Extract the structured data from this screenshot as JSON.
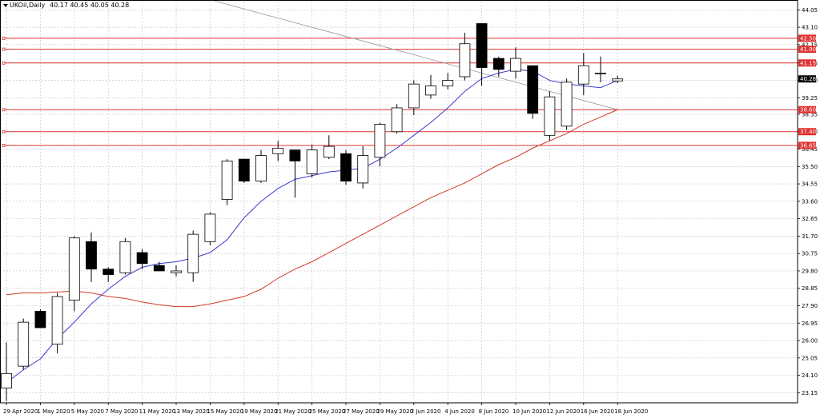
{
  "header": {
    "symbol_label": "UKOil,Daily",
    "ohlc_label": "40.17 40.45 40.05 40.28"
  },
  "price_label": "40.28",
  "colors": {
    "background": "#ffffff",
    "grid": "#c0c0c0",
    "candle_outline": "#000000",
    "bull_fill": "#ffffff",
    "bear_fill": "#000000",
    "ma_fast": "#3a3ad0",
    "ma_slow": "#d03a2a",
    "level_line": "#e03030",
    "trend_line": "#a0a0a0",
    "price_tag": "#000000"
  },
  "chart_data": {
    "type": "candlestick",
    "title": "UKOil,Daily",
    "ylim": [
      22.6,
      44.5
    ],
    "y_ticks": [
      "44.05",
      "43.10",
      "42.15",
      "41.15",
      "40.20",
      "39.25",
      "38.35",
      "37.40",
      "36.45",
      "35.50",
      "34.55",
      "33.60",
      "32.65",
      "31.70",
      "30.75",
      "29.80",
      "28.85",
      "27.90",
      "26.95",
      "26.00",
      "25.05",
      "24.10",
      "23.15"
    ],
    "x_tick_labels": [
      {
        "index": 0,
        "label": "29 Apr 2020"
      },
      {
        "index": 2,
        "label": "1 May 2020"
      },
      {
        "index": 4,
        "label": "5 May 2020"
      },
      {
        "index": 6,
        "label": "7 May 2020"
      },
      {
        "index": 8,
        "label": "11 May 2020"
      },
      {
        "index": 10,
        "label": "13 May 2020"
      },
      {
        "index": 12,
        "label": "15 May 2020"
      },
      {
        "index": 14,
        "label": "19 May 2020"
      },
      {
        "index": 16,
        "label": "21 May 2020"
      },
      {
        "index": 18,
        "label": "25 May 2020"
      },
      {
        "index": 20,
        "label": "27 May 2020"
      },
      {
        "index": 22,
        "label": "29 May 2020"
      },
      {
        "index": 24,
        "label": "2 Jun 2020"
      },
      {
        "index": 26,
        "label": "4 Jun 2020"
      },
      {
        "index": 28,
        "label": "8 Jun 2020"
      },
      {
        "index": 30,
        "label": "10 Jun 2020"
      },
      {
        "index": 32,
        "label": "12 Jun 2020"
      },
      {
        "index": 34,
        "label": "16 Jun 2020"
      },
      {
        "index": 36,
        "label": "18 Jun 2020"
      }
    ],
    "candles": [
      {
        "o": 23.4,
        "h": 25.9,
        "l": 22.7,
        "c": 24.2
      },
      {
        "o": 24.6,
        "h": 27.2,
        "l": 24.4,
        "c": 27.0
      },
      {
        "o": 27.6,
        "h": 27.7,
        "l": 26.7,
        "c": 26.7
      },
      {
        "o": 25.8,
        "h": 28.6,
        "l": 25.3,
        "c": 28.4
      },
      {
        "o": 28.2,
        "h": 31.7,
        "l": 27.6,
        "c": 31.6
      },
      {
        "o": 31.4,
        "h": 31.9,
        "l": 29.2,
        "c": 29.9
      },
      {
        "o": 29.9,
        "h": 30.0,
        "l": 29.2,
        "c": 29.6
      },
      {
        "o": 29.7,
        "h": 31.6,
        "l": 29.6,
        "c": 31.4
      },
      {
        "o": 30.8,
        "h": 31.0,
        "l": 29.9,
        "c": 30.2
      },
      {
        "o": 30.1,
        "h": 30.3,
        "l": 29.8,
        "c": 29.8
      },
      {
        "o": 29.7,
        "h": 30.1,
        "l": 29.5,
        "c": 29.8
      },
      {
        "o": 29.7,
        "h": 32.0,
        "l": 29.2,
        "c": 31.8
      },
      {
        "o": 31.4,
        "h": 33.0,
        "l": 31.2,
        "c": 32.9
      },
      {
        "o": 33.7,
        "h": 35.9,
        "l": 33.4,
        "c": 35.8
      },
      {
        "o": 35.9,
        "h": 35.9,
        "l": 34.6,
        "c": 34.7
      },
      {
        "o": 34.7,
        "h": 36.4,
        "l": 34.6,
        "c": 36.1
      },
      {
        "o": 36.2,
        "h": 36.9,
        "l": 35.8,
        "c": 36.5
      },
      {
        "o": 36.4,
        "h": 36.4,
        "l": 33.8,
        "c": 35.8
      },
      {
        "o": 35.1,
        "h": 36.7,
        "l": 34.9,
        "c": 36.4
      },
      {
        "o": 36.0,
        "h": 37.2,
        "l": 35.9,
        "c": 36.6
      },
      {
        "o": 36.2,
        "h": 36.4,
        "l": 34.5,
        "c": 34.7
      },
      {
        "o": 34.6,
        "h": 36.6,
        "l": 34.3,
        "c": 36.1
      },
      {
        "o": 36.0,
        "h": 37.9,
        "l": 35.5,
        "c": 37.8
      },
      {
        "o": 37.4,
        "h": 38.9,
        "l": 37.3,
        "c": 38.7
      },
      {
        "o": 38.7,
        "h": 40.2,
        "l": 38.3,
        "c": 40.0
      },
      {
        "o": 39.4,
        "h": 40.5,
        "l": 39.2,
        "c": 39.9
      },
      {
        "o": 39.9,
        "h": 40.6,
        "l": 39.7,
        "c": 40.2
      },
      {
        "o": 40.4,
        "h": 42.8,
        "l": 40.2,
        "c": 42.2
      },
      {
        "o": 43.3,
        "h": 43.3,
        "l": 39.9,
        "c": 40.9
      },
      {
        "o": 41.4,
        "h": 41.5,
        "l": 40.4,
        "c": 40.8
      },
      {
        "o": 40.7,
        "h": 42.0,
        "l": 40.3,
        "c": 41.4
      },
      {
        "o": 41.0,
        "h": 41.0,
        "l": 38.1,
        "c": 38.4
      },
      {
        "o": 37.2,
        "h": 39.6,
        "l": 36.9,
        "c": 39.3
      },
      {
        "o": 37.7,
        "h": 40.3,
        "l": 37.5,
        "c": 40.1
      },
      {
        "o": 40.0,
        "h": 41.7,
        "l": 39.4,
        "c": 41.0
      },
      {
        "o": 40.6,
        "h": 41.5,
        "l": 40.1,
        "c": 40.6
      },
      {
        "o": 40.17,
        "h": 40.45,
        "l": 40.05,
        "c": 40.28
      }
    ],
    "ma_fast": [
      23.7,
      24.4,
      25.0,
      26.1,
      27.0,
      28.0,
      28.8,
      29.5,
      30.0,
      30.2,
      30.3,
      30.5,
      30.8,
      31.5,
      32.7,
      33.6,
      34.3,
      34.8,
      35.0,
      35.2,
      35.3,
      35.4,
      35.9,
      36.5,
      37.2,
      37.9,
      38.7,
      39.6,
      40.3,
      40.6,
      40.8,
      40.7,
      40.2,
      40.0,
      39.9,
      39.8,
      40.2
    ],
    "ma_slow": [
      28.5,
      28.6,
      28.6,
      28.65,
      28.7,
      28.6,
      28.4,
      28.3,
      28.1,
      27.95,
      27.85,
      27.85,
      28.0,
      28.2,
      28.4,
      28.8,
      29.4,
      29.9,
      30.3,
      30.8,
      31.3,
      31.8,
      32.3,
      32.8,
      33.3,
      33.8,
      34.2,
      34.6,
      35.1,
      35.6,
      36.0,
      36.5,
      36.9,
      37.3,
      37.8,
      38.2,
      38.6
    ],
    "horizontal_levels": [
      {
        "value": 42.5,
        "label": "42.50"
      },
      {
        "value": 41.9,
        "label": "41.90"
      },
      {
        "value": 41.15,
        "label": "41.15"
      },
      {
        "value": 38.6,
        "label": "38.60"
      },
      {
        "value": 37.4,
        "label": "37.40"
      },
      {
        "value": 36.65,
        "label": "36.65"
      }
    ],
    "trend_line": {
      "from": {
        "index": 12,
        "value": 44.6
      },
      "to": {
        "index": 36,
        "value": 38.6
      }
    },
    "grid": true
  }
}
